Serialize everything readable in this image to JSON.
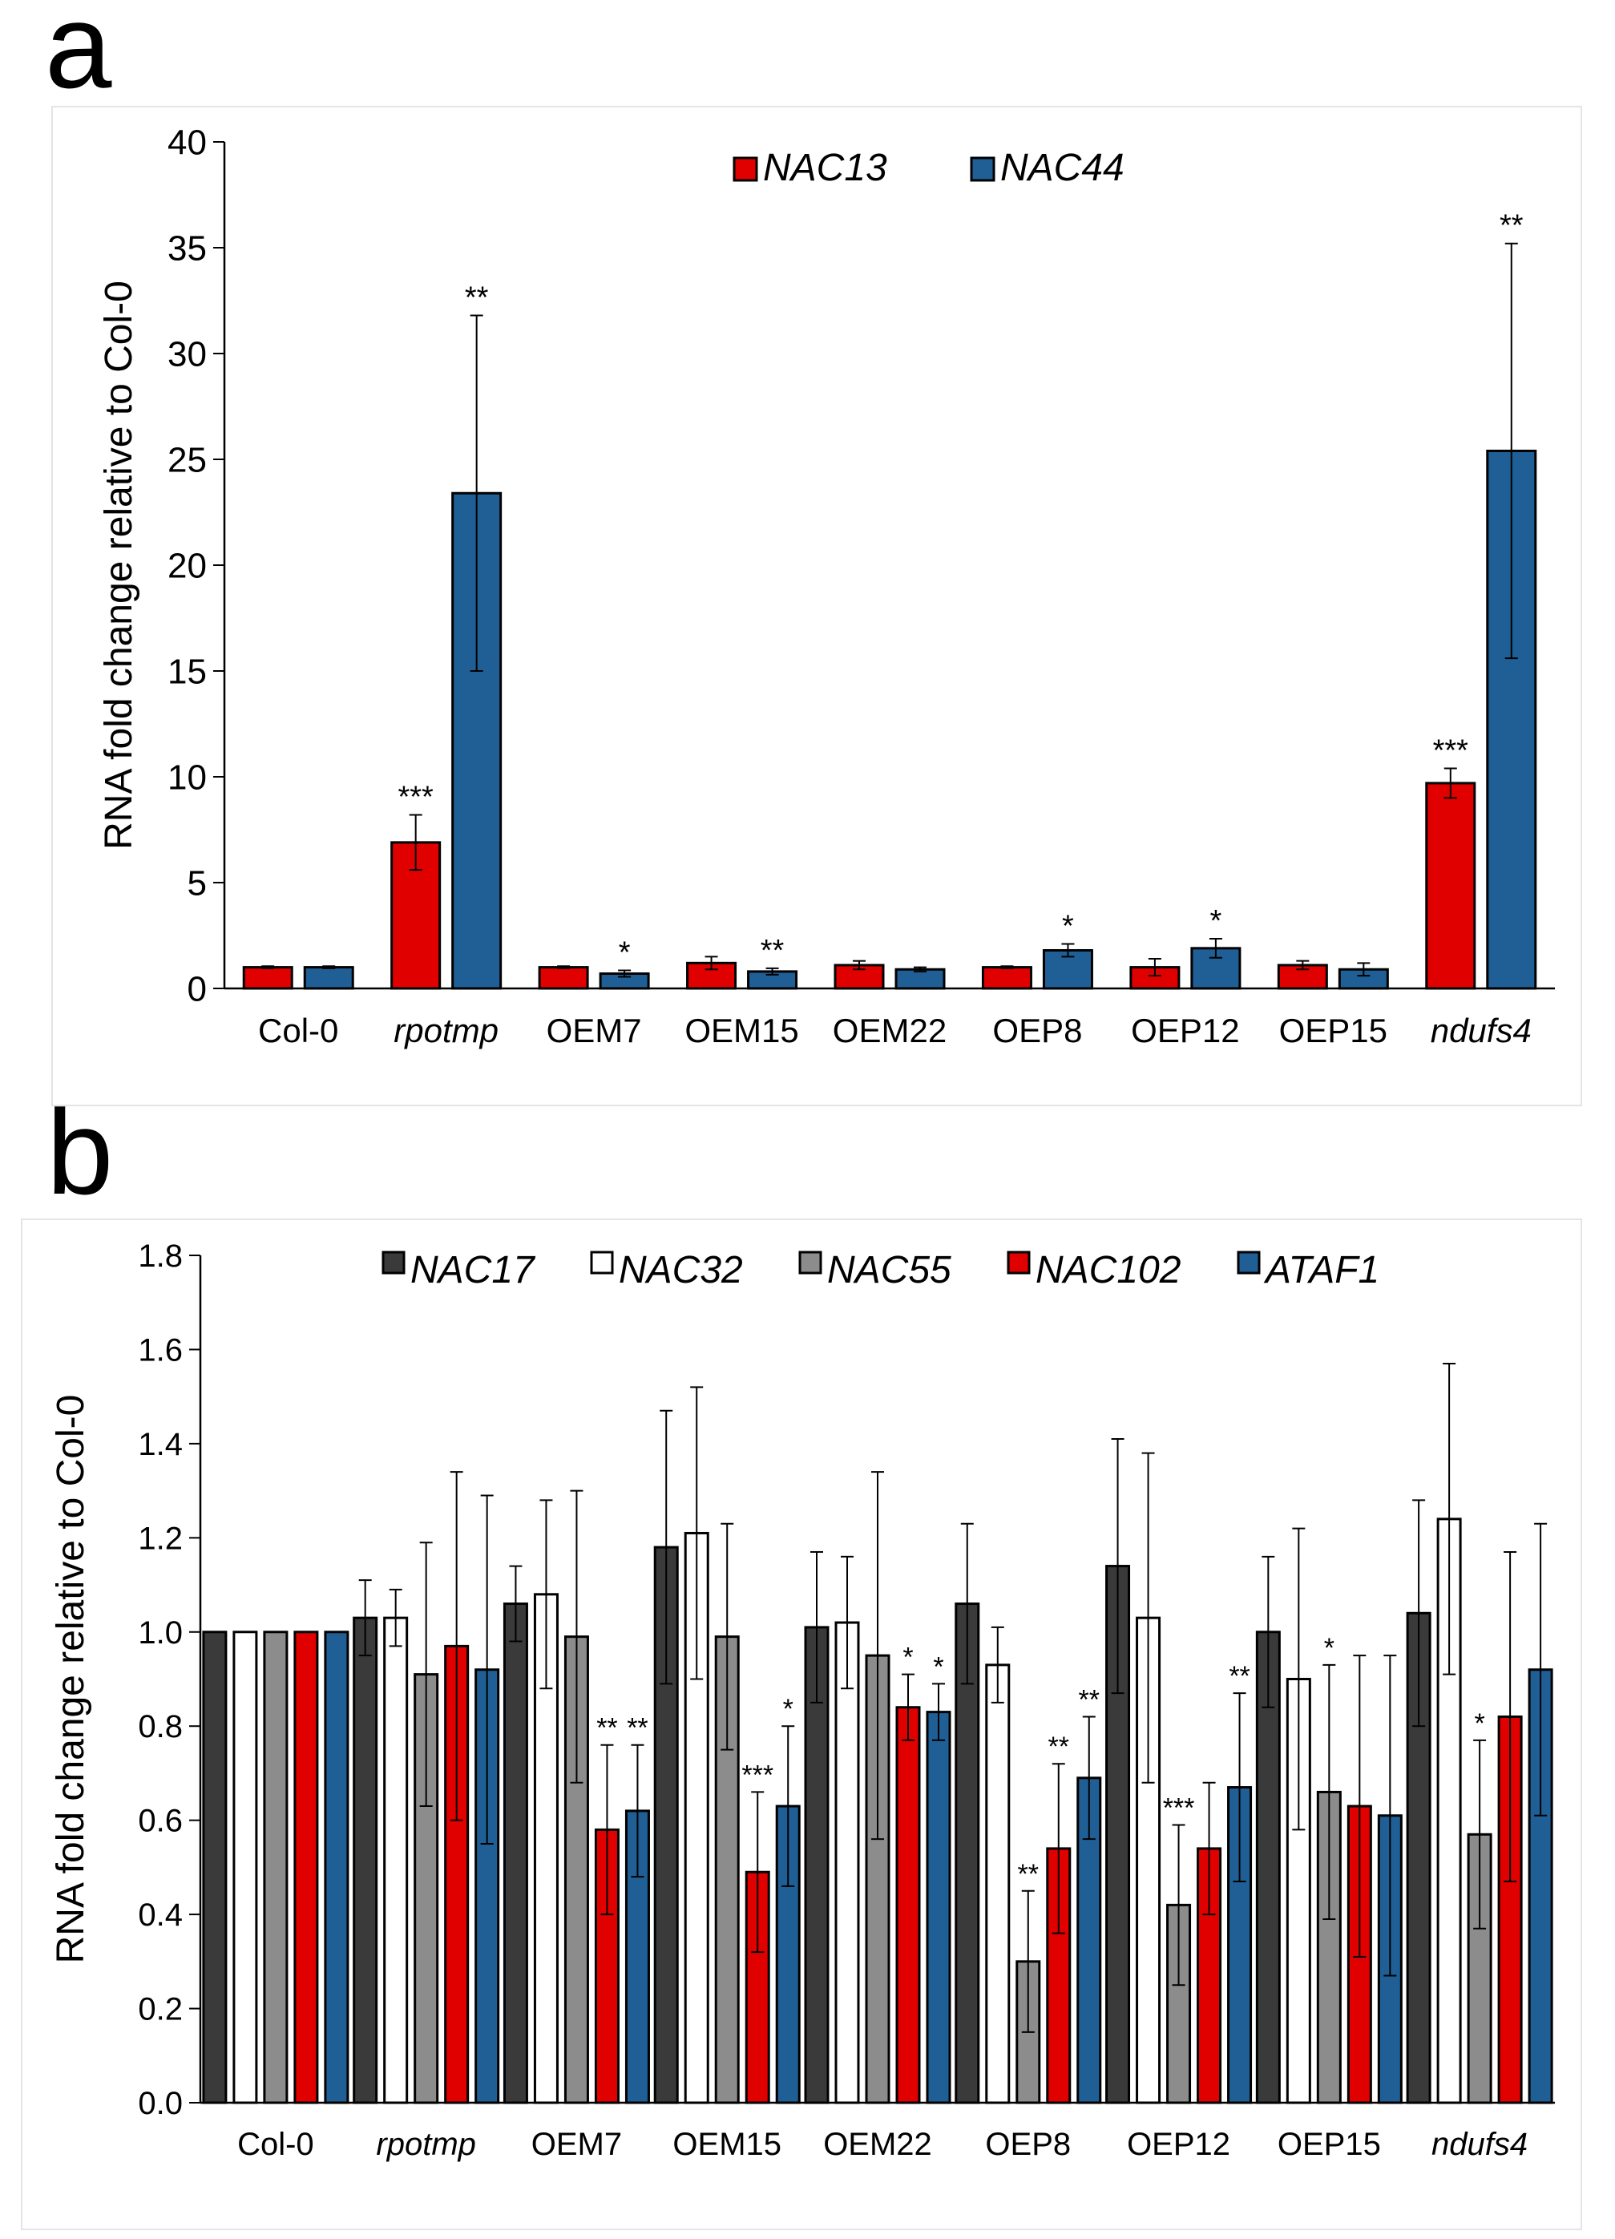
{
  "panel_labels": {
    "a": "a",
    "b": "b"
  },
  "colors": {
    "NAC13": "#e00000",
    "NAC44": "#1f5f95",
    "NAC17": "#3a3a3a",
    "NAC32": "#ffffff",
    "NAC55": "#8c8c8c",
    "NAC102": "#e00000",
    "ATAF1": "#1f5f95"
  },
  "chart_data": [
    {
      "type": "bar",
      "panel": "a",
      "ylabel": "RNA fold change relative to Col-0",
      "ylim": [
        0,
        40
      ],
      "yticks": [
        "0",
        "5",
        "10",
        "15",
        "20",
        "25",
        "30",
        "35",
        "40"
      ],
      "categories": [
        "Col-0",
        "rpotmp",
        "OEM7",
        "OEM15",
        "OEM22",
        "OEP8",
        "OEP12",
        "OEP15",
        "ndufs4"
      ],
      "italic_categories": [
        "rpotmp",
        "ndufs4"
      ],
      "legend_position": "top-center",
      "series": [
        {
          "name": "NAC13",
          "color": "#e00000",
          "values": [
            1.0,
            6.9,
            1.0,
            1.2,
            1.1,
            1.0,
            1.0,
            1.1,
            9.7
          ],
          "errors": [
            0.05,
            1.3,
            0.05,
            0.3,
            0.2,
            0.05,
            0.4,
            0.2,
            0.7
          ],
          "significance": [
            "",
            "***",
            "",
            "",
            "",
            "",
            "",
            "",
            "***"
          ]
        },
        {
          "name": "NAC44",
          "color": "#1f5f95",
          "values": [
            1.0,
            23.4,
            0.7,
            0.8,
            0.9,
            1.8,
            1.9,
            0.9,
            25.4
          ],
          "errors": [
            0.05,
            8.4,
            0.15,
            0.15,
            0.1,
            0.3,
            0.45,
            0.3,
            9.8
          ],
          "significance": [
            "",
            "**",
            "*",
            "**",
            "",
            "*",
            "*",
            "",
            "**"
          ]
        }
      ]
    },
    {
      "type": "bar",
      "panel": "b",
      "ylabel": "RNA fold change relative to Col-0",
      "ylim": [
        0,
        1.8
      ],
      "yticks": [
        "0.0",
        "0.2",
        "0.4",
        "0.6",
        "0.8",
        "1.0",
        "1.2",
        "1.4",
        "1.6",
        "1.8"
      ],
      "categories": [
        "Col-0",
        "rpotmp",
        "OEM7",
        "OEM15",
        "OEM22",
        "OEP8",
        "OEP12",
        "OEP15",
        "ndufs4"
      ],
      "italic_categories": [
        "rpotmp",
        "ndufs4"
      ],
      "legend_position": "top-center",
      "series": [
        {
          "name": "NAC17",
          "color": "#3a3a3a",
          "values": [
            1.0,
            1.03,
            1.06,
            1.18,
            1.01,
            1.06,
            1.14,
            1.0,
            1.04
          ],
          "errors": [
            0,
            0.08,
            0.08,
            0.29,
            0.16,
            0.17,
            0.27,
            0.16,
            0.24
          ],
          "significance": [
            "",
            "",
            "",
            "",
            "",
            "",
            "",
            "",
            ""
          ]
        },
        {
          "name": "NAC32",
          "color": "#ffffff",
          "values": [
            1.0,
            1.03,
            1.08,
            1.21,
            1.02,
            0.93,
            1.03,
            0.9,
            1.24
          ],
          "errors": [
            0,
            0.06,
            0.2,
            0.31,
            0.14,
            0.08,
            0.35,
            0.32,
            0.33
          ],
          "significance": [
            "",
            "",
            "",
            "",
            "",
            "",
            "",
            "",
            ""
          ]
        },
        {
          "name": "NAC55",
          "color": "#8c8c8c",
          "values": [
            1.0,
            0.91,
            0.99,
            0.99,
            0.95,
            0.3,
            0.42,
            0.66,
            0.57
          ],
          "errors": [
            0,
            0.28,
            0.31,
            0.24,
            0.39,
            0.15,
            0.17,
            0.27,
            0.2
          ],
          "significance": [
            "",
            "",
            "",
            "",
            "",
            "**",
            "***",
            "*",
            "*"
          ]
        },
        {
          "name": "NAC102",
          "color": "#e00000",
          "values": [
            1.0,
            0.97,
            0.58,
            0.49,
            0.84,
            0.54,
            0.54,
            0.63,
            0.82
          ],
          "errors": [
            0,
            0.37,
            0.18,
            0.17,
            0.07,
            0.18,
            0.14,
            0.32,
            0.35
          ],
          "significance": [
            "",
            "",
            "**",
            "***",
            "*",
            "**",
            "",
            "",
            ""
          ]
        },
        {
          "name": "ATAF1",
          "color": "#1f5f95",
          "values": [
            1.0,
            0.92,
            0.62,
            0.63,
            0.83,
            0.69,
            0.67,
            0.61,
            0.92
          ],
          "errors": [
            0,
            0.37,
            0.14,
            0.17,
            0.06,
            0.13,
            0.2,
            0.34,
            0.31
          ],
          "significance": [
            "",
            "",
            "**",
            "*",
            "*",
            "**",
            "**",
            "",
            ""
          ]
        }
      ]
    }
  ]
}
